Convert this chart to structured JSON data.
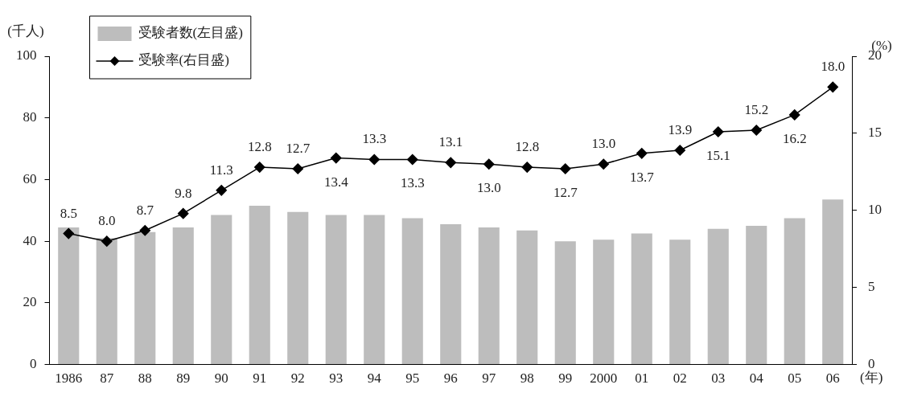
{
  "chart_data": {
    "type": "bar",
    "ylabel": "(千人)",
    "y2label": "(%)",
    "xlabel": "(年)",
    "categories": [
      "1986",
      "87",
      "88",
      "89",
      "90",
      "91",
      "92",
      "93",
      "94",
      "95",
      "96",
      "97",
      "98",
      "99",
      "2000",
      "01",
      "02",
      "03",
      "04",
      "05",
      "06"
    ],
    "series": [
      {
        "name": "受験者数(左目盛)",
        "color": "#bdbdbd",
        "values": [
          44.5,
          41,
          43,
          44.5,
          48.5,
          51.5,
          49.5,
          48.5,
          48.5,
          47.5,
          45.5,
          44.5,
          43.5,
          40,
          40.5,
          42.5,
          40.5,
          44,
          45,
          47.5,
          53.5
        ]
      },
      {
        "name": "受験率(右目盛)",
        "type": "line",
        "axis": "y2",
        "color": "#000000",
        "marker": "diamond",
        "value_labels": [
          "8.5",
          "8.0",
          "8.7",
          "9.8",
          "11.3",
          "12.8",
          "12.7",
          "13.4",
          "13.3",
          "13.3",
          "13.1",
          "13.0",
          "12.8",
          "12.7",
          "13.0",
          "13.7",
          "13.9",
          "15.1",
          "15.2",
          "16.2",
          "18.0"
        ],
        "values": [
          8.5,
          8.0,
          8.7,
          9.8,
          11.3,
          12.8,
          12.7,
          13.4,
          13.3,
          13.3,
          13.1,
          13.0,
          12.8,
          12.7,
          13.0,
          13.7,
          13.9,
          15.1,
          15.2,
          16.2,
          18.0
        ]
      }
    ],
    "ylim": [
      0,
      100
    ],
    "yticks": [
      0,
      20,
      40,
      60,
      80,
      100
    ],
    "y2lim": [
      0,
      20
    ],
    "y2ticks": [
      0,
      5,
      10,
      15,
      20
    ],
    "grid": false,
    "legend": "top left"
  }
}
